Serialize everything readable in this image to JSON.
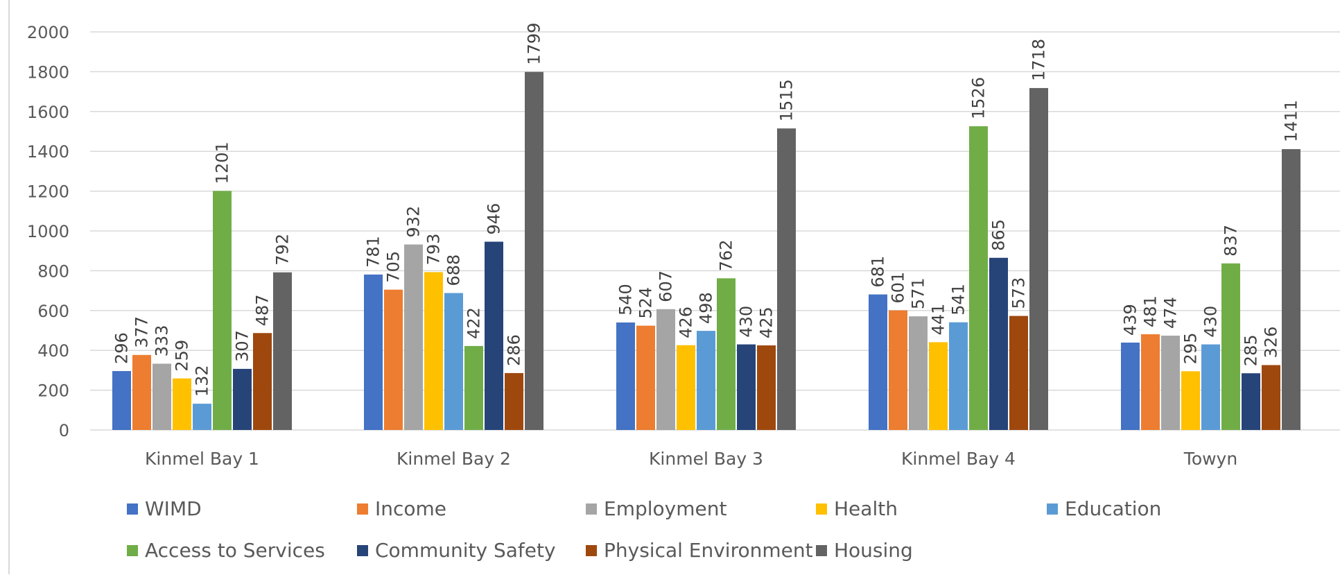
{
  "chart_data": {
    "type": "bar",
    "title": "",
    "xlabel": "",
    "ylabel": "",
    "ylim": [
      0,
      2000
    ],
    "yticks": [
      0,
      200,
      400,
      600,
      800,
      1000,
      1200,
      1400,
      1600,
      1800,
      2000
    ],
    "grid": true,
    "legend_position": "bottom",
    "categories": [
      "Kinmel Bay 1",
      "Kinmel Bay 2",
      "Kinmel Bay 3",
      "Kinmel Bay 4",
      "Towyn"
    ],
    "series": [
      {
        "name": "WIMD",
        "color": "#4472C4",
        "values": [
          296,
          781,
          540,
          681,
          439
        ]
      },
      {
        "name": "Income",
        "color": "#ED7D31",
        "values": [
          377,
          705,
          524,
          601,
          481
        ]
      },
      {
        "name": "Employment",
        "color": "#A5A5A5",
        "values": [
          333,
          932,
          607,
          571,
          474
        ]
      },
      {
        "name": "Health",
        "color": "#FFC000",
        "values": [
          259,
          793,
          426,
          441,
          295
        ]
      },
      {
        "name": "Education",
        "color": "#5B9BD5",
        "values": [
          132,
          688,
          498,
          541,
          430
        ]
      },
      {
        "name": "Access to Services",
        "color": "#70AD47",
        "values": [
          1201,
          422,
          762,
          1526,
          837
        ]
      },
      {
        "name": "Community Safety",
        "color": "#264478",
        "values": [
          307,
          946,
          430,
          865,
          285
        ]
      },
      {
        "name": "Physical Environment",
        "color": "#9E480E",
        "values": [
          487,
          286,
          425,
          573,
          326
        ]
      },
      {
        "name": "Housing",
        "color": "#636363",
        "values": [
          792,
          1799,
          1515,
          1718,
          1411
        ]
      }
    ]
  }
}
